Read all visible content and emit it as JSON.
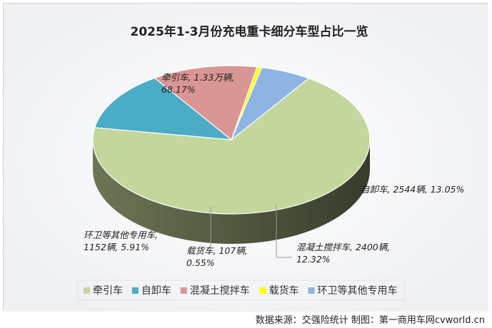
{
  "chart_data": {
    "type": "pie",
    "title": "2025年1-3月份充电重卡细分车型占比一览",
    "series": [
      {
        "name": "牵引车",
        "color": "#c3d69b",
        "value": 68.17,
        "label_lines": [
          "牵引车, 1.33万辆,",
          "68.17%"
        ]
      },
      {
        "name": "自卸车",
        "color": "#4bacc6",
        "value": 13.05,
        "label_lines": [
          "自卸车, 2544辆, 13.05%"
        ]
      },
      {
        "name": "混凝土搅拌车",
        "color": "#d99694",
        "value": 12.32,
        "label_lines": [
          "混凝土搅拌车, 2400辆,",
          "12.32%"
        ]
      },
      {
        "name": "载货车",
        "color": "#ffff00",
        "value": 0.55,
        "label_lines": [
          "载货车, 107辆,",
          "0.55%"
        ]
      },
      {
        "name": "环卫等其他专用车",
        "color": "#8eb4e3",
        "value": 5.91,
        "label_lines": [
          "环卫等其他专用车,",
          "1152辆, 5.91%"
        ]
      }
    ],
    "legend_position": "bottom"
  },
  "source_text": "数据来源：交强险统计  制图：第一商用车网cvworld.cn"
}
